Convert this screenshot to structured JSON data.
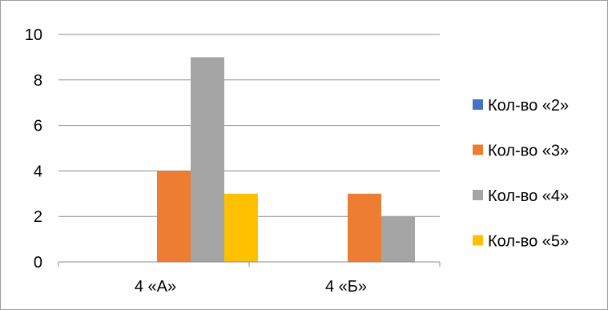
{
  "chart_data": {
    "type": "bar",
    "title": "",
    "xlabel": "",
    "ylabel": "",
    "categories": [
      "4 «А»",
      "4 «Б»"
    ],
    "series": [
      {
        "name": "Кол-во «2»",
        "color": "#4472C4",
        "values": [
          0,
          0
        ]
      },
      {
        "name": "Кол-во «3»",
        "color": "#ED7D31",
        "values": [
          4,
          3
        ]
      },
      {
        "name": "Кол-во «4»",
        "color": "#A5A5A5",
        "values": [
          9,
          2
        ]
      },
      {
        "name": "Кол-во «5»",
        "color": "#FFC000",
        "values": [
          3,
          0
        ]
      }
    ],
    "ylim": [
      0,
      10
    ],
    "yticks": [
      0,
      2,
      4,
      6,
      8,
      10
    ],
    "grid": true,
    "legend_position": "right"
  }
}
